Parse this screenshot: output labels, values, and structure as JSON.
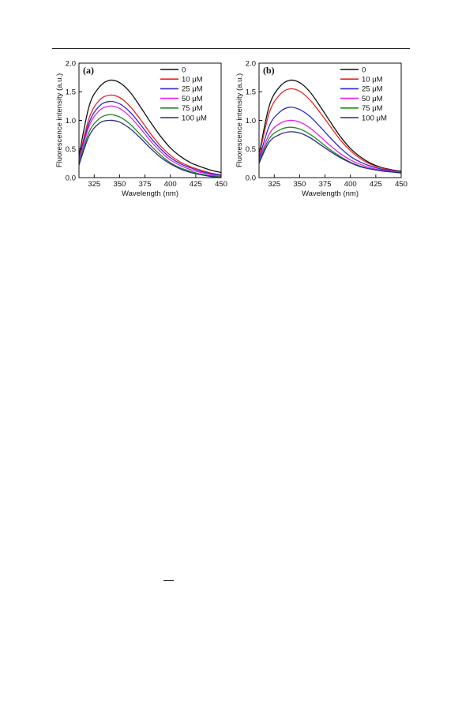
{
  "chart_data": [
    {
      "type": "line",
      "panel_label": "(a)",
      "xlabel": "Wavelength (nm)",
      "ylabel": "Fluorescence intensity (a.u.)",
      "xlim": [
        310,
        450
      ],
      "ylim": [
        0.0,
        2.0
      ],
      "xticks": [
        325,
        350,
        375,
        400,
        425,
        450
      ],
      "yticks": [
        0.0,
        0.5,
        1.0,
        1.5,
        2.0
      ],
      "ytick_labels": [
        "0.0",
        "0.5",
        "1.0",
        "1.5",
        "2.0"
      ],
      "legend_position": "top-right",
      "x": [
        310,
        320,
        330,
        340,
        350,
        360,
        370,
        380,
        390,
        400,
        410,
        420,
        430,
        440,
        450
      ],
      "series": [
        {
          "name": "0",
          "color": "#111111",
          "values": [
            0.38,
            1.25,
            1.58,
            1.7,
            1.66,
            1.5,
            1.25,
            0.98,
            0.73,
            0.52,
            0.37,
            0.26,
            0.19,
            0.13,
            0.09
          ]
        },
        {
          "name": "10 μM",
          "color": "#e8261f",
          "values": [
            0.32,
            1.04,
            1.35,
            1.44,
            1.4,
            1.25,
            1.03,
            0.78,
            0.56,
            0.39,
            0.27,
            0.19,
            0.13,
            0.08,
            0.05
          ]
        },
        {
          "name": "25 μM",
          "color": "#2b2bd6",
          "values": [
            0.3,
            0.96,
            1.25,
            1.33,
            1.29,
            1.15,
            0.94,
            0.71,
            0.51,
            0.35,
            0.24,
            0.17,
            0.11,
            0.07,
            0.04
          ]
        },
        {
          "name": "50 μM",
          "color": "#e81ee8",
          "values": [
            0.28,
            0.9,
            1.17,
            1.25,
            1.21,
            1.07,
            0.87,
            0.65,
            0.46,
            0.31,
            0.21,
            0.14,
            0.09,
            0.05,
            0.02
          ]
        },
        {
          "name": "75 μM",
          "color": "#1f8a1f",
          "values": [
            0.25,
            0.8,
            1.03,
            1.1,
            1.06,
            0.94,
            0.76,
            0.57,
            0.4,
            0.26,
            0.17,
            0.11,
            0.06,
            0.03,
            0.01
          ]
        },
        {
          "name": "100 μM",
          "color": "#2a2a8c",
          "values": [
            0.22,
            0.73,
            0.95,
            1.0,
            0.97,
            0.86,
            0.7,
            0.52,
            0.36,
            0.24,
            0.15,
            0.09,
            0.05,
            0.02,
            0.0
          ]
        }
      ]
    },
    {
      "type": "line",
      "panel_label": "(b)",
      "xlabel": "Wavelength (nm)",
      "ylabel": "Fluorescence intensity (a.u.)",
      "xlim": [
        310,
        450
      ],
      "ylim": [
        0.0,
        2.0
      ],
      "xticks": [
        325,
        350,
        375,
        400,
        425,
        450
      ],
      "yticks": [
        0.0,
        0.5,
        1.0,
        1.5,
        2.0
      ],
      "ytick_labels": [
        "0.0",
        "0.5",
        "1.0",
        "1.5",
        "2.0"
      ],
      "legend_position": "top-right",
      "x": [
        310,
        320,
        330,
        340,
        350,
        360,
        370,
        380,
        390,
        400,
        410,
        420,
        430,
        440,
        450
      ],
      "series": [
        {
          "name": "0",
          "color": "#111111",
          "values": [
            0.4,
            1.25,
            1.58,
            1.7,
            1.66,
            1.5,
            1.25,
            0.98,
            0.72,
            0.51,
            0.36,
            0.25,
            0.18,
            0.14,
            0.11
          ]
        },
        {
          "name": "10 μM",
          "color": "#e8261f",
          "values": [
            0.37,
            1.13,
            1.44,
            1.55,
            1.51,
            1.36,
            1.14,
            0.9,
            0.66,
            0.47,
            0.33,
            0.23,
            0.17,
            0.13,
            0.1
          ]
        },
        {
          "name": "25 μM",
          "color": "#2b2bd6",
          "values": [
            0.32,
            0.9,
            1.14,
            1.23,
            1.19,
            1.07,
            0.89,
            0.7,
            0.52,
            0.37,
            0.27,
            0.2,
            0.15,
            0.12,
            0.1
          ]
        },
        {
          "name": "50 μM",
          "color": "#e81ee8",
          "values": [
            0.29,
            0.76,
            0.94,
            1.0,
            0.97,
            0.87,
            0.72,
            0.56,
            0.42,
            0.31,
            0.23,
            0.17,
            0.13,
            0.11,
            0.09
          ]
        },
        {
          "name": "75 μM",
          "color": "#1f8a1f",
          "values": [
            0.27,
            0.68,
            0.83,
            0.88,
            0.85,
            0.76,
            0.63,
            0.49,
            0.37,
            0.27,
            0.2,
            0.15,
            0.12,
            0.1,
            0.08
          ]
        },
        {
          "name": "100 μM",
          "color": "#2a2a8c",
          "values": [
            0.25,
            0.62,
            0.75,
            0.8,
            0.78,
            0.7,
            0.58,
            0.46,
            0.35,
            0.26,
            0.19,
            0.15,
            0.12,
            0.1,
            0.08
          ]
        }
      ]
    }
  ]
}
